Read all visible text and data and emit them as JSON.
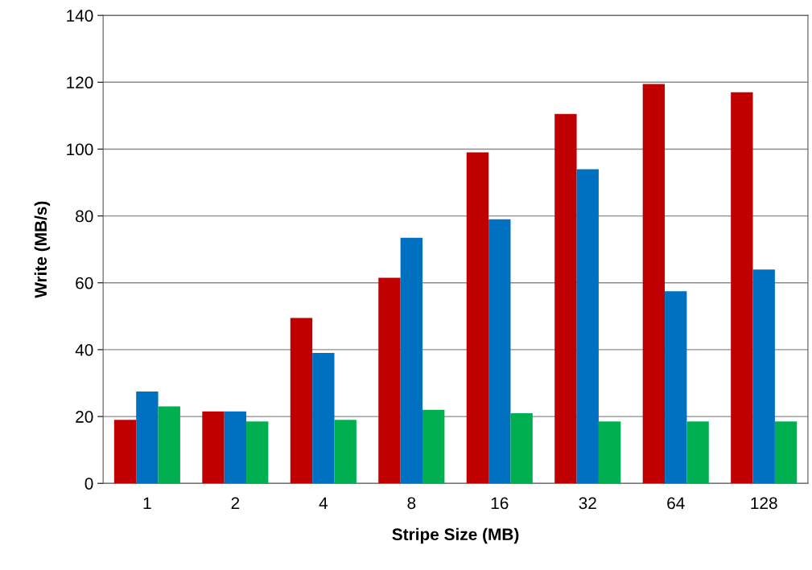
{
  "chart_data": {
    "type": "bar",
    "xlabel": "Stripe Size (MB)",
    "ylabel": "Write (MB/s)",
    "categories": [
      "1",
      "2",
      "4",
      "8",
      "16",
      "32",
      "64",
      "128"
    ],
    "series": [
      {
        "color": "#c00000",
        "values": [
          19,
          21.5,
          49.5,
          61.5,
          99,
          110.5,
          119.5,
          117
        ]
      },
      {
        "color": "#0070c0",
        "values": [
          27.5,
          21.5,
          39,
          73.5,
          79,
          94,
          57.5,
          64
        ]
      },
      {
        "color": "#00b050",
        "values": [
          23,
          18.5,
          19,
          22,
          21,
          18.5,
          18.5,
          18.5
        ]
      }
    ],
    "ylim": [
      0,
      140
    ],
    "yticks": [
      0,
      20,
      40,
      60,
      80,
      100,
      120,
      140
    ],
    "grid": "y",
    "legend": false
  }
}
